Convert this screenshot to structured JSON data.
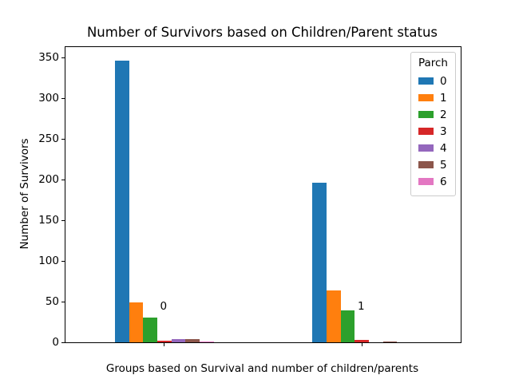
{
  "chart_data": {
    "type": "bar",
    "title": "Number of Survivors based on Children/Parent status",
    "xlabel": "Groups based on Survival and number of children/parents",
    "ylabel": "Number of Survivors",
    "legend_title": "Parch",
    "legend_position": "upper right",
    "grid": false,
    "categories": [
      "0",
      "1"
    ],
    "series": [
      {
        "name": "0",
        "color": "#1f77b4",
        "values": [
          346,
          196
        ]
      },
      {
        "name": "1",
        "color": "#ff7f0e",
        "values": [
          49,
          64
        ]
      },
      {
        "name": "2",
        "color": "#2ca02c",
        "values": [
          30,
          39
        ]
      },
      {
        "name": "3",
        "color": "#d62728",
        "values": [
          2,
          3
        ]
      },
      {
        "name": "4",
        "color": "#9467bd",
        "values": [
          4,
          0
        ]
      },
      {
        "name": "5",
        "color": "#8c564b",
        "values": [
          4,
          1
        ]
      },
      {
        "name": "6",
        "color": "#e377c2",
        "values": [
          1,
          0
        ]
      }
    ],
    "yticks": [
      0,
      50,
      100,
      150,
      200,
      250,
      300,
      350
    ],
    "ylim": [
      0,
      363
    ],
    "xlim_data_units": [
      -0.5,
      1.5
    ],
    "bar_cluster_width_data_units": 0.5
  }
}
